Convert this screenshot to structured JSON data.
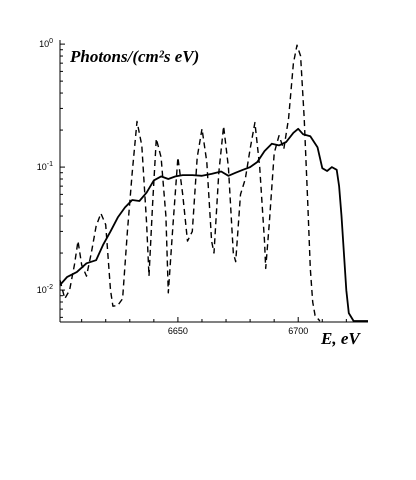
{
  "chart_data": {
    "type": "line",
    "ylabel": "Photons/(cm²s eV)",
    "xlabel": "E, eV",
    "xlim": [
      6601,
      6729
    ],
    "ylim": [
      0.0055,
      1.08
    ],
    "y_scale": "log",
    "x_ticks": [
      6650,
      6700
    ],
    "y_ticks": [
      {
        "value": 0.01,
        "base": "10",
        "exp": "-2"
      },
      {
        "value": 0.1,
        "base": "10",
        "exp": "-1"
      },
      {
        "value": 1,
        "base": "10",
        "exp": "0"
      }
    ],
    "grid": false,
    "series": [
      {
        "style": "solid",
        "color": "#000000",
        "points": [
          [
            6601,
            0.011
          ],
          [
            6604,
            0.0128
          ],
          [
            6608,
            0.014
          ],
          [
            6612,
            0.0165
          ],
          [
            6616,
            0.0175
          ],
          [
            6619,
            0.0235
          ],
          [
            6622,
            0.03
          ],
          [
            6625,
            0.039
          ],
          [
            6628,
            0.047
          ],
          [
            6631,
            0.054
          ],
          [
            6634,
            0.053
          ],
          [
            6637,
            0.062
          ],
          [
            6640,
            0.078
          ],
          [
            6643,
            0.084
          ],
          [
            6646,
            0.08
          ],
          [
            6649,
            0.084
          ],
          [
            6652,
            0.086
          ],
          [
            6656,
            0.086
          ],
          [
            6660,
            0.085
          ],
          [
            6664,
            0.088
          ],
          [
            6668,
            0.092
          ],
          [
            6671,
            0.085
          ],
          [
            6674,
            0.09
          ],
          [
            6677,
            0.095
          ],
          [
            6680,
            0.1
          ],
          [
            6683,
            0.11
          ],
          [
            6686,
            0.135
          ],
          [
            6689,
            0.155
          ],
          [
            6692,
            0.15
          ],
          [
            6695,
            0.16
          ],
          [
            6698,
            0.19
          ],
          [
            6700,
            0.205
          ],
          [
            6702,
            0.185
          ],
          [
            6705,
            0.178
          ],
          [
            6708,
            0.145
          ],
          [
            6710,
            0.098
          ],
          [
            6712,
            0.093
          ],
          [
            6714,
            0.1
          ],
          [
            6716,
            0.095
          ],
          [
            6717,
            0.07
          ],
          [
            6718,
            0.04
          ],
          [
            6719,
            0.02
          ],
          [
            6720,
            0.01
          ],
          [
            6721,
            0.0065
          ],
          [
            6723,
            0.0056
          ],
          [
            6729,
            0.0056
          ]
        ]
      },
      {
        "style": "dashed",
        "color": "#000000",
        "points": [
          [
            6601,
            0.012
          ],
          [
            6603,
            0.0085
          ],
          [
            6605,
            0.01
          ],
          [
            6607,
            0.016
          ],
          [
            6608.5,
            0.025
          ],
          [
            6610,
            0.016
          ],
          [
            6612,
            0.013
          ],
          [
            6614,
            0.02
          ],
          [
            6616,
            0.033
          ],
          [
            6618,
            0.042
          ],
          [
            6620,
            0.034
          ],
          [
            6622,
            0.01
          ],
          [
            6623,
            0.0074
          ],
          [
            6625,
            0.0075
          ],
          [
            6627,
            0.0085
          ],
          [
            6629,
            0.03
          ],
          [
            6631,
            0.09
          ],
          [
            6633,
            0.235
          ],
          [
            6635,
            0.15
          ],
          [
            6637,
            0.035
          ],
          [
            6638,
            0.013
          ],
          [
            6639.5,
            0.05
          ],
          [
            6641,
            0.17
          ],
          [
            6643,
            0.12
          ],
          [
            6645,
            0.04
          ],
          [
            6646,
            0.0095
          ],
          [
            6648,
            0.035
          ],
          [
            6650,
            0.12
          ],
          [
            6652,
            0.06
          ],
          [
            6654,
            0.025
          ],
          [
            6656,
            0.03
          ],
          [
            6658,
            0.12
          ],
          [
            6660,
            0.205
          ],
          [
            6662,
            0.11
          ],
          [
            6664,
            0.025
          ],
          [
            6665,
            0.02
          ],
          [
            6667,
            0.09
          ],
          [
            6669,
            0.215
          ],
          [
            6671,
            0.1
          ],
          [
            6673,
            0.02
          ],
          [
            6674,
            0.017
          ],
          [
            6676,
            0.06
          ],
          [
            6678,
            0.08
          ],
          [
            6680,
            0.14
          ],
          [
            6682,
            0.23
          ],
          [
            6684,
            0.1
          ],
          [
            6686,
            0.025
          ],
          [
            6686.5,
            0.015
          ],
          [
            6688,
            0.035
          ],
          [
            6690,
            0.13
          ],
          [
            6692,
            0.18
          ],
          [
            6694,
            0.14
          ],
          [
            6696,
            0.25
          ],
          [
            6698,
            0.7
          ],
          [
            6699.5,
            0.98
          ],
          [
            6701,
            0.8
          ],
          [
            6702.5,
            0.25
          ],
          [
            6704,
            0.05
          ],
          [
            6705,
            0.015
          ],
          [
            6706,
            0.008
          ],
          [
            6707,
            0.0062
          ],
          [
            6709,
            0.0056
          ]
        ]
      }
    ]
  }
}
